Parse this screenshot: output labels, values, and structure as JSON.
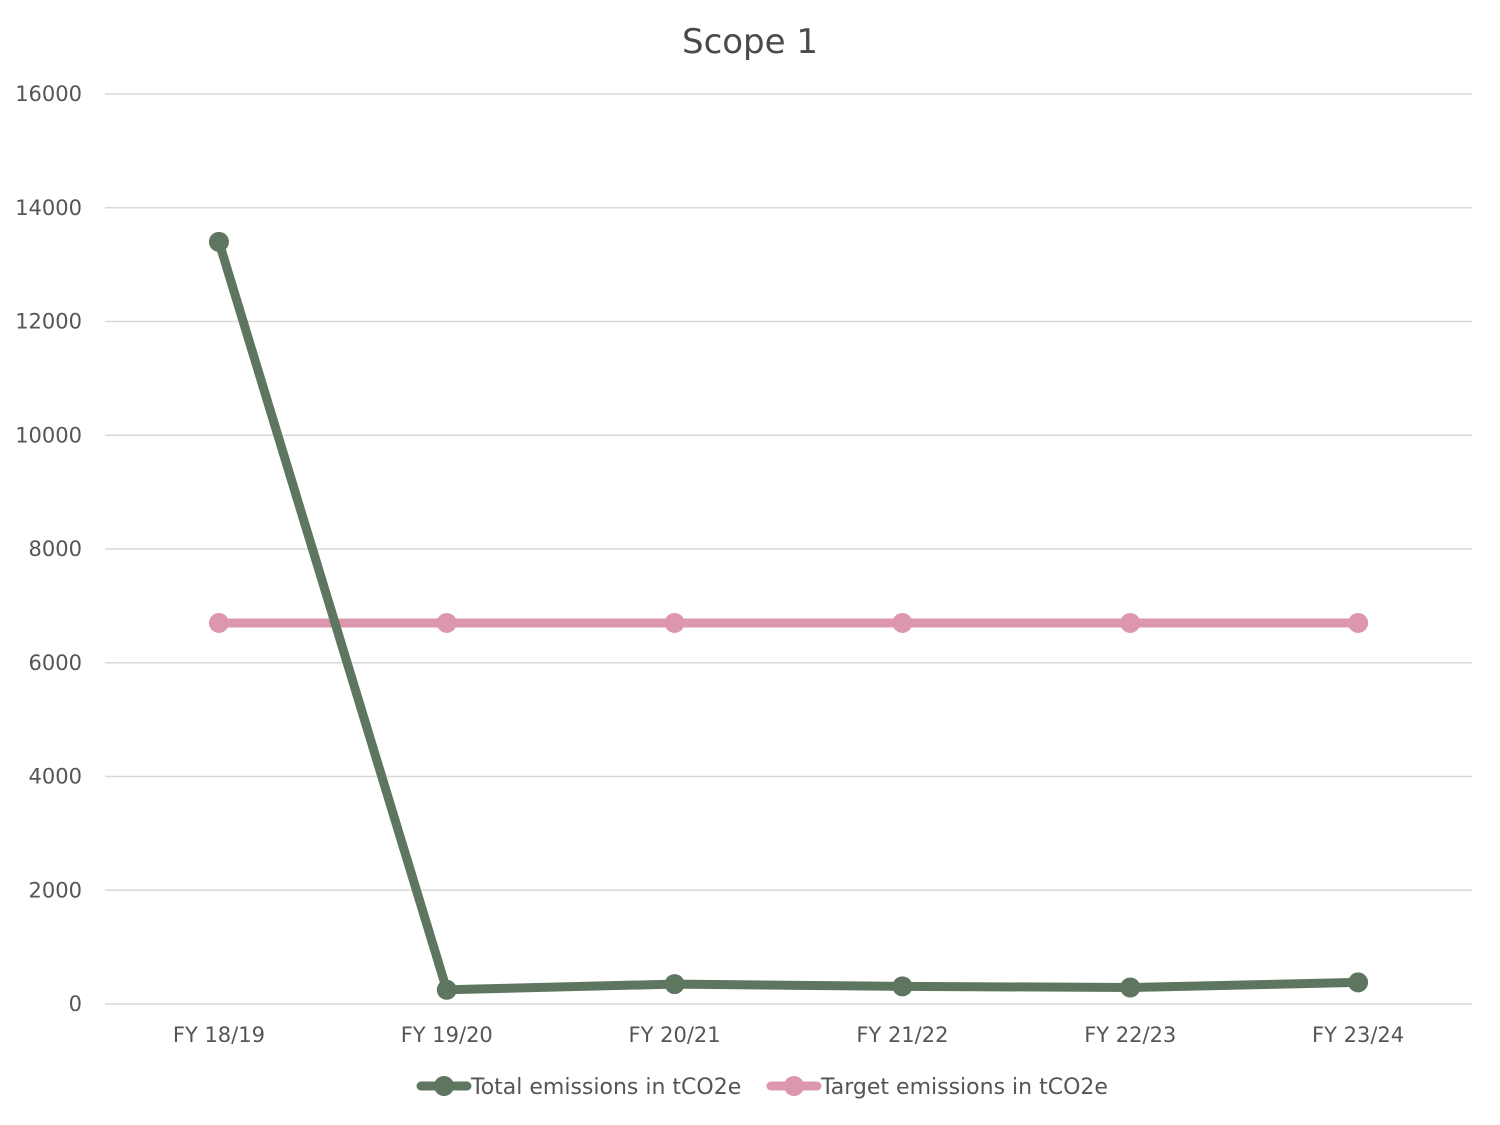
{
  "chart_data": {
    "type": "line",
    "title": "Scope 1",
    "categories": [
      "FY 18/19",
      "FY 19/20",
      "FY 20/21",
      "FY 21/22",
      "FY 22/23",
      "FY 23/24"
    ],
    "ylim": [
      0,
      16000
    ],
    "yticks": [
      0,
      2000,
      4000,
      6000,
      8000,
      10000,
      12000,
      14000,
      16000
    ],
    "grid": true,
    "legend_position": "bottom",
    "series": [
      {
        "name": "Total emissions in tCO2e",
        "color": "#5e7560",
        "values": [
          13400,
          250,
          350,
          310,
          290,
          380
        ]
      },
      {
        "name": "Target emissions in tCO2e",
        "color": "#dc97ad",
        "values": [
          6700,
          6700,
          6700,
          6700,
          6700,
          6700
        ]
      }
    ]
  }
}
